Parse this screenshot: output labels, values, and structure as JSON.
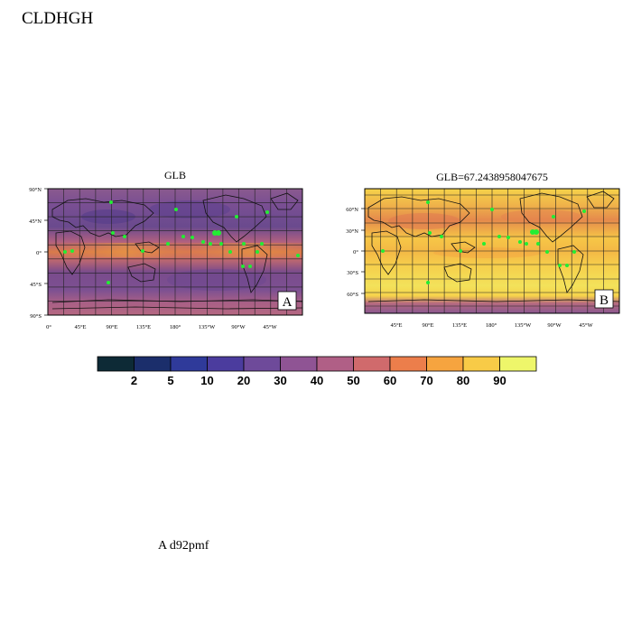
{
  "figure": {
    "title": "CLDHGH",
    "footer": "A  d92pmf"
  },
  "panels": [
    {
      "title": "GLB",
      "badge": "A",
      "lat_labels": [
        "90°N",
        "45°N",
        "0°",
        "45°S",
        "90°S"
      ],
      "lon_labels": [
        "0°",
        "45°E",
        "90°E",
        "135°E",
        "180°",
        "135°W",
        "90°W",
        "45°W"
      ]
    },
    {
      "title": "GLB=67.2438958047675",
      "badge": "B",
      "lat_labels": [
        "60°N",
        "30°N",
        "0°",
        "30°S",
        "60°S"
      ],
      "lon_labels": [
        "45°E",
        "90°E",
        "135°E",
        "180°",
        "135°W",
        "90°W",
        "45°W"
      ]
    }
  ],
  "colorbar": {
    "levels": [
      "2",
      "5",
      "10",
      "20",
      "30",
      "40",
      "50",
      "60",
      "70",
      "80",
      "90"
    ],
    "colors": [
      "#0d2a36",
      "#1b2e6b",
      "#2f3a9a",
      "#4b3c9e",
      "#6e4a9a",
      "#8f5494",
      "#b05f86",
      "#d06a6c",
      "#ec7e4b",
      "#f6a43f",
      "#f8cb47",
      "#eef66a"
    ]
  },
  "markers": {
    "color": "#22ee33"
  }
}
